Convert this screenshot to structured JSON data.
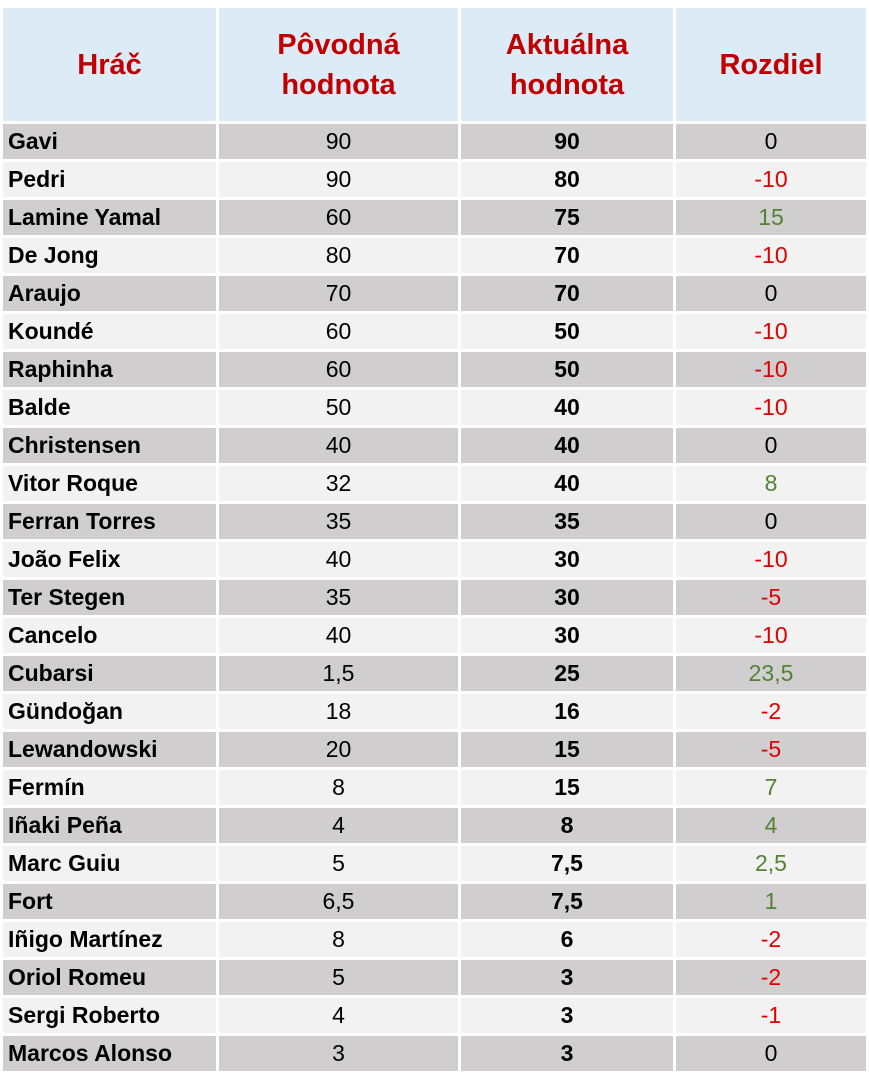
{
  "table": {
    "header": [
      "Hráč",
      "Pôvodná hodnota",
      "Aktuálna hodnota",
      "Rozdiel"
    ],
    "rows": [
      [
        "Gavi",
        "90",
        "90",
        "0"
      ],
      [
        "Pedri",
        "90",
        "80",
        "-10"
      ],
      [
        "Lamine Yamal",
        "60",
        "75",
        "15"
      ],
      [
        "De Jong",
        "80",
        "70",
        "-10"
      ],
      [
        "Araujo",
        "70",
        "70",
        "0"
      ],
      [
        "Koundé",
        "60",
        "50",
        "-10"
      ],
      [
        "Raphinha",
        "60",
        "50",
        "-10"
      ],
      [
        "Balde",
        "50",
        "40",
        "-10"
      ],
      [
        "Christensen",
        "40",
        "40",
        "0"
      ],
      [
        "Vitor Roque",
        "32",
        "40",
        "8"
      ],
      [
        "Ferran Torres",
        "35",
        "35",
        "0"
      ],
      [
        "João Felix",
        "40",
        "30",
        "-10"
      ],
      [
        "Ter Stegen",
        "35",
        "30",
        "-5"
      ],
      [
        "Cancelo",
        "40",
        "30",
        "-10"
      ],
      [
        "Cubarsi",
        "1,5",
        "25",
        "23,5"
      ],
      [
        "Gündoğan",
        "18",
        "16",
        "-2"
      ],
      [
        "Lewandowski",
        "20",
        "15",
        "-5"
      ],
      [
        "Fermín",
        "8",
        "15",
        "7"
      ],
      [
        "Iñaki Peña",
        "4",
        "8",
        "4"
      ],
      [
        "Marc Guiu",
        "5",
        "7,5",
        "2,5"
      ],
      [
        "Fort",
        "6,5",
        "7,5",
        "1"
      ],
      [
        "Iñigo Martínez",
        "8",
        "6",
        "-2"
      ],
      [
        "Oriol Romeu",
        "5",
        "3",
        "-2"
      ],
      [
        "Sergi Roberto",
        "4",
        "3",
        "-1"
      ],
      [
        "Marcos Alonso",
        "3",
        "3",
        "0"
      ]
    ],
    "diff_colors": {
      "negative": "#e00000",
      "positive": "#548235",
      "zero": "#000000"
    }
  }
}
